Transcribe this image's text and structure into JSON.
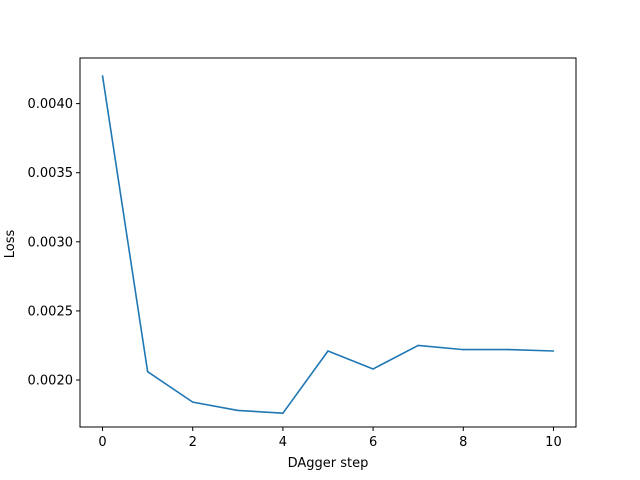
{
  "chart_data": {
    "type": "line",
    "title": "",
    "xlabel": "DAgger step",
    "ylabel": "Loss",
    "xlim": [
      -0.5,
      10.5
    ],
    "ylim": [
      0.00166,
      0.00433
    ],
    "xticks": [
      0,
      2,
      4,
      6,
      8,
      10
    ],
    "xtick_labels": [
      "0",
      "2",
      "4",
      "6",
      "8",
      "10"
    ],
    "yticks": [
      0.002,
      0.0025,
      0.003,
      0.0035,
      0.004
    ],
    "ytick_labels": [
      "0.0020",
      "0.0025",
      "0.0030",
      "0.0035",
      "0.0040"
    ],
    "grid": false,
    "legend": "none",
    "series": [
      {
        "color": "#1f77b4",
        "x": [
          0,
          1,
          2,
          3,
          4,
          5,
          6,
          7,
          8,
          9,
          10
        ],
        "values": [
          0.0042,
          0.00206,
          0.00184,
          0.00178,
          0.00176,
          0.00221,
          0.00208,
          0.00225,
          0.00222,
          0.00222,
          0.00221
        ]
      }
    ]
  }
}
